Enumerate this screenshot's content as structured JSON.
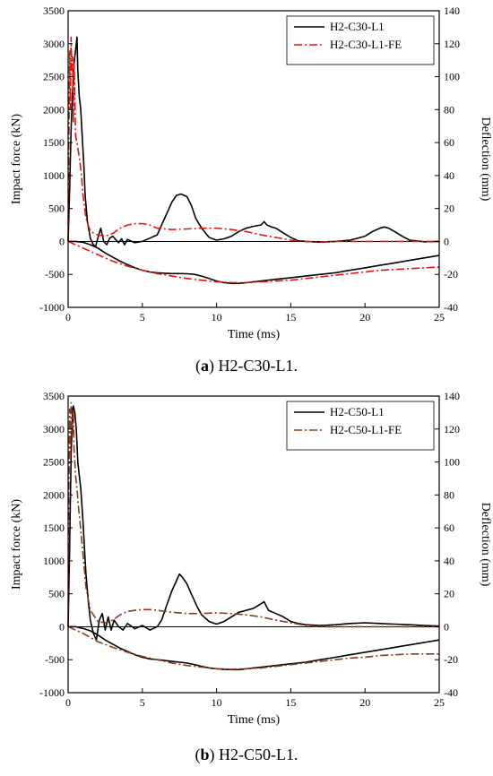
{
  "chart_data": [
    {
      "id": "a",
      "type": "line",
      "caption_letter": "a",
      "caption_rest": ") H2-C30-L1.",
      "xlabel": "Time (ms)",
      "ylabel_left": "Impact force (kN)",
      "ylabel_right": "Deflection (mm)",
      "xlim": [
        0,
        25
      ],
      "ylim_left": [
        -1000,
        3500
      ],
      "ylim_right": [
        -40,
        140
      ],
      "xticks": [
        0,
        5,
        10,
        15,
        20,
        25
      ],
      "yticks_left": [
        -1000,
        -500,
        0,
        500,
        1000,
        1500,
        2000,
        2500,
        3000,
        3500
      ],
      "yticks_right": [
        -40,
        -20,
        0,
        20,
        40,
        60,
        80,
        100,
        120,
        140
      ],
      "legend_position": "top-right",
      "series": [
        {
          "name": "H2-C30-L1",
          "color": "#000000",
          "style": "solid",
          "axis": "left",
          "x": [
            0,
            0.1,
            0.2,
            0.3,
            0.4,
            0.5,
            0.6,
            0.65,
            0.75,
            0.85,
            0.95,
            1.05,
            1.15,
            1.3,
            1.5,
            1.7,
            1.85,
            2.0,
            2.2,
            2.4,
            2.6,
            2.8,
            3.0,
            3.2,
            3.4,
            3.6,
            3.8,
            4.0,
            4.5,
            5.0,
            5.5,
            6.0,
            6.3,
            6.6,
            7.0,
            7.3,
            7.6,
            7.8,
            8.0,
            8.3,
            8.6,
            9.0,
            9.5,
            10.0,
            10.5,
            11.0,
            11.5,
            12.0,
            12.5,
            13.0,
            13.2,
            13.4,
            13.7,
            14.0,
            14.5,
            15.0,
            15.5,
            16.0,
            17.0,
            18.0,
            19.0,
            20.0,
            20.5,
            21.0,
            21.3,
            21.6,
            22.0,
            22.5,
            23.0,
            24.0,
            25.0
          ],
          "y": [
            0,
            800,
            1700,
            2300,
            2700,
            2900,
            3100,
            2600,
            2200,
            2000,
            1600,
            1200,
            700,
            300,
            50,
            -50,
            -80,
            50,
            200,
            0,
            -50,
            50,
            80,
            30,
            -20,
            40,
            -50,
            30,
            -20,
            0,
            50,
            100,
            250,
            400,
            600,
            700,
            720,
            700,
            680,
            550,
            350,
            200,
            60,
            20,
            40,
            80,
            150,
            200,
            230,
            250,
            300,
            250,
            220,
            200,
            130,
            60,
            10,
            0,
            -10,
            0,
            20,
            80,
            150,
            200,
            220,
            200,
            150,
            80,
            20,
            -5,
            0
          ]
        },
        {
          "name": "H2-C30-L1-FE",
          "color": "#e8120c",
          "style": "dashdot",
          "axis": "left",
          "x": [
            0,
            0.05,
            0.1,
            0.15,
            0.2,
            0.25,
            0.3,
            0.35,
            0.4,
            0.45,
            0.5,
            0.6,
            0.7,
            0.8,
            0.9,
            1.0,
            1.2,
            1.5,
            2.0,
            2.5,
            3.0,
            3.5,
            4.0,
            4.5,
            5.0,
            5.5,
            6.0,
            7.0,
            8.0,
            9.0,
            10.0,
            11.0,
            12.0,
            13.0,
            14.0,
            15.0,
            16.0,
            17.0,
            18.0,
            20.0,
            22.0,
            25.0
          ],
          "y": [
            0,
            1500,
            2900,
            2000,
            3100,
            2600,
            2800,
            1800,
            2700,
            2200,
            1600,
            1500,
            1350,
            1200,
            1000,
            700,
            350,
            150,
            100,
            80,
            120,
            200,
            250,
            270,
            270,
            250,
            200,
            180,
            190,
            200,
            200,
            180,
            150,
            100,
            60,
            20,
            0,
            -10,
            0,
            0,
            0,
            0
          ]
        },
        {
          "name": "",
          "color": "#000000",
          "style": "solid",
          "axis": "right",
          "x": [
            0,
            0.5,
            1.0,
            1.5,
            2.0,
            2.5,
            3.0,
            3.5,
            4.0,
            4.5,
            5.0,
            5.5,
            6.0,
            6.5,
            7.0,
            7.5,
            8.0,
            8.5,
            9.0,
            9.5,
            10.0,
            10.5,
            11.0,
            11.5,
            12.0,
            12.5,
            13.0,
            14.0,
            15.0,
            16.0,
            17.0,
            18.0,
            19.0,
            20.0,
            21.0,
            22.0,
            23.0,
            24.0,
            25.0
          ],
          "y": [
            0,
            0,
            -0.5,
            -2,
            -4,
            -7,
            -9.5,
            -12,
            -14,
            -16,
            -17.5,
            -18.5,
            -19,
            -19.3,
            -19.5,
            -19.5,
            -19.6,
            -20,
            -21,
            -22.5,
            -24,
            -25,
            -25.5,
            -25.5,
            -25,
            -24.5,
            -24,
            -23,
            -22,
            -21,
            -20,
            -19,
            -17.5,
            -16,
            -14.5,
            -13,
            -11.5,
            -10,
            -8.5
          ]
        },
        {
          "name": "",
          "color": "#e8120c",
          "style": "dashdot",
          "axis": "right",
          "x": [
            0,
            0.5,
            1.0,
            1.5,
            2.0,
            3.0,
            4.0,
            5.0,
            6.0,
            7.0,
            8.0,
            9.0,
            10.0,
            11.0,
            12.0,
            13.0,
            14.0,
            15.0,
            16.0,
            17.0,
            18.0,
            19.0,
            20.0,
            21.0,
            22.0,
            23.0,
            24.0,
            25.0
          ],
          "y": [
            0,
            -2,
            -4,
            -6,
            -8,
            -12,
            -15,
            -17.5,
            -19.5,
            -21,
            -22.5,
            -23.5,
            -24.5,
            -25,
            -25,
            -24.5,
            -24,
            -23.5,
            -22.5,
            -21.5,
            -20.5,
            -19.5,
            -18.5,
            -17.5,
            -17,
            -16.5,
            -16,
            -15.5
          ]
        }
      ]
    },
    {
      "id": "b",
      "type": "line",
      "caption_letter": "b",
      "caption_rest": ") H2-C50-L1.",
      "xlabel": "Time (ms)",
      "ylabel_left": "Impact force (kN)",
      "ylabel_right": "Deflection (mm)",
      "xlim": [
        0,
        25
      ],
      "ylim_left": [
        -1000,
        3500
      ],
      "ylim_right": [
        -40,
        140
      ],
      "xticks": [
        0,
        5,
        10,
        15,
        20,
        25
      ],
      "yticks_left": [
        -1000,
        -500,
        0,
        500,
        1000,
        1500,
        2000,
        2500,
        3000,
        3500
      ],
      "yticks_right": [
        -40,
        -20,
        0,
        20,
        40,
        60,
        80,
        100,
        120,
        140
      ],
      "legend_position": "top-right",
      "series": [
        {
          "name": "H2-C50-L1",
          "color": "#000000",
          "style": "solid",
          "axis": "left",
          "x": [
            0,
            0.1,
            0.2,
            0.3,
            0.35,
            0.45,
            0.55,
            0.65,
            0.75,
            0.85,
            1.0,
            1.1,
            1.2,
            1.35,
            1.5,
            1.7,
            1.9,
            2.1,
            2.3,
            2.5,
            2.7,
            2.9,
            3.1,
            3.4,
            3.7,
            4.0,
            4.5,
            5.0,
            5.5,
            6.0,
            6.3,
            6.6,
            7.0,
            7.3,
            7.5,
            7.7,
            8.0,
            8.3,
            8.7,
            9.0,
            9.5,
            10.0,
            10.5,
            11.0,
            11.5,
            12.0,
            12.5,
            13.0,
            13.2,
            13.5,
            14.0,
            14.5,
            15.0,
            15.5,
            16.0,
            17.0,
            18.0,
            19.0,
            20.0,
            21.0,
            22.0,
            23.0,
            24.0,
            25.0
          ],
          "y": [
            0,
            1200,
            2600,
            3300,
            3350,
            3250,
            3000,
            2500,
            2300,
            2100,
            1600,
            1200,
            800,
            400,
            100,
            -100,
            -200,
            100,
            200,
            -50,
            150,
            -50,
            100,
            0,
            -50,
            50,
            -30,
            20,
            -50,
            0,
            100,
            300,
            550,
            700,
            800,
            750,
            650,
            500,
            300,
            180,
            80,
            40,
            80,
            150,
            220,
            250,
            280,
            350,
            380,
            250,
            200,
            150,
            80,
            50,
            30,
            20,
            30,
            50,
            60,
            50,
            40,
            30,
            20,
            10
          ]
        },
        {
          "name": "H2-C50-L1-FE",
          "color": "#8b3a1a",
          "style": "dashdot",
          "axis": "left",
          "x": [
            0,
            0.05,
            0.1,
            0.15,
            0.2,
            0.25,
            0.3,
            0.35,
            0.4,
            0.5,
            0.6,
            0.7,
            0.8,
            1.0,
            1.2,
            1.5,
            2.0,
            2.5,
            3.0,
            3.5,
            4.0,
            4.5,
            5.0,
            5.5,
            6.0,
            7.0,
            8.0,
            9.0,
            10.0,
            11.0,
            12.0,
            13.0,
            14.0,
            15.0,
            16.0,
            17.0,
            18.0,
            20.0,
            22.0,
            25.0
          ],
          "y": [
            0,
            2000,
            3300,
            2600,
            3400,
            3100,
            2900,
            3300,
            2700,
            2300,
            2100,
            1800,
            1600,
            1100,
            600,
            250,
            80,
            60,
            100,
            180,
            230,
            250,
            260,
            260,
            250,
            220,
            200,
            200,
            210,
            200,
            180,
            150,
            100,
            60,
            20,
            0,
            0,
            0,
            0,
            0
          ]
        },
        {
          "name": "",
          "color": "#000000",
          "style": "solid",
          "axis": "right",
          "x": [
            0,
            0.5,
            1.0,
            1.5,
            2.0,
            2.5,
            3.0,
            3.5,
            4.0,
            4.5,
            5.0,
            5.5,
            6.0,
            6.5,
            7.0,
            7.5,
            8.0,
            8.5,
            9.0,
            9.5,
            10.0,
            10.5,
            11.0,
            11.5,
            12.0,
            13.0,
            14.0,
            15.0,
            16.0,
            17.0,
            18.0,
            19.0,
            20.0,
            21.0,
            22.0,
            23.0,
            24.0,
            25.0
          ],
          "y": [
            0,
            0,
            -1,
            -2.5,
            -5,
            -8,
            -10.5,
            -13,
            -15,
            -17,
            -18.5,
            -19.5,
            -20,
            -20.5,
            -21,
            -21.5,
            -22,
            -23,
            -24,
            -25,
            -25.5,
            -25.8,
            -26,
            -26,
            -25.5,
            -24.5,
            -23.5,
            -22.5,
            -21.5,
            -20,
            -18.5,
            -17,
            -15.5,
            -14,
            -12.5,
            -11,
            -9.5,
            -8
          ]
        },
        {
          "name": "",
          "color": "#8b3a1a",
          "style": "dashdot",
          "axis": "right",
          "x": [
            0,
            0.5,
            1.0,
            1.5,
            2.0,
            3.0,
            4.0,
            5.0,
            6.0,
            7.0,
            8.0,
            9.0,
            10.0,
            11.0,
            12.0,
            13.0,
            14.0,
            15.0,
            16.0,
            17.0,
            18.0,
            19.0,
            20.0,
            21.0,
            22.0,
            23.0,
            24.0,
            25.0
          ],
          "y": [
            0,
            -2,
            -4,
            -6.5,
            -9,
            -12.5,
            -15.5,
            -18,
            -20,
            -22,
            -23.5,
            -24.5,
            -25.5,
            -25.8,
            -25.5,
            -25,
            -24,
            -23,
            -22,
            -21,
            -20,
            -19,
            -18.5,
            -17.5,
            -17,
            -16.5,
            -16.5,
            -16.5
          ]
        }
      ]
    }
  ]
}
